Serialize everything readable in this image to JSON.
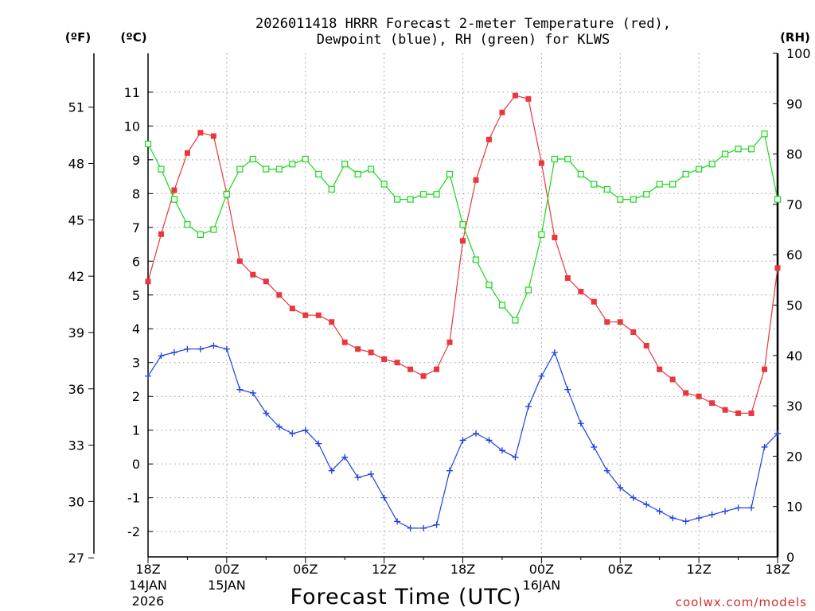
{
  "chart_data": {
    "type": "line",
    "title_line1": "2026011418 HRRR Forecast 2-meter Temperature (red),",
    "title_line2": "Dewpoint (blue), RH (green) for KLWS",
    "xlabel": "Forecast Time (UTC)",
    "watermark": "coolwx.com/models",
    "left_f_label": "(ºF)",
    "left_c_label": "(ºC)",
    "right_label": "(RH)",
    "x_hours_range": [
      0,
      48
    ],
    "c_range": [
      -2.75,
      12.15
    ],
    "rh_range": [
      0,
      100
    ],
    "x_ticks": [
      {
        "hour": 0,
        "label": "18Z",
        "date": "14JAN",
        "year": "2026"
      },
      {
        "hour": 6,
        "label": "00Z",
        "date": "15JAN",
        "year": ""
      },
      {
        "hour": 12,
        "label": "06Z",
        "date": "",
        "year": ""
      },
      {
        "hour": 18,
        "label": "12Z",
        "date": "",
        "year": ""
      },
      {
        "hour": 24,
        "label": "18Z",
        "date": "",
        "year": ""
      },
      {
        "hour": 30,
        "label": "00Z",
        "date": "16JAN",
        "year": ""
      },
      {
        "hour": 36,
        "label": "06Z",
        "date": "",
        "year": ""
      },
      {
        "hour": 42,
        "label": "12Z",
        "date": "",
        "year": ""
      },
      {
        "hour": 48,
        "label": "18Z",
        "date": "",
        "year": ""
      }
    ],
    "c_ticks": [
      "-2",
      "-1",
      "0",
      "1",
      "2",
      "3",
      "4",
      "5",
      "6",
      "7",
      "8",
      "9",
      "10",
      "11"
    ],
    "f_ticks": [
      "27",
      "30",
      "33",
      "36",
      "39",
      "42",
      "45",
      "48",
      "51"
    ],
    "rh_ticks": [
      "0",
      "10",
      "20",
      "30",
      "40",
      "50",
      "60",
      "70",
      "80",
      "90",
      "100"
    ],
    "series": [
      {
        "name": "Temperature (°C)",
        "color": "#e8383d",
        "marker": "filled-square",
        "axis": "c",
        "values": [
          5.4,
          6.8,
          8.1,
          9.2,
          9.8,
          9.7,
          8.0,
          6.0,
          5.6,
          5.4,
          5.0,
          4.6,
          4.4,
          4.4,
          4.2,
          3.6,
          3.4,
          3.3,
          3.1,
          3.0,
          2.8,
          2.6,
          2.8,
          3.6,
          6.6,
          8.4,
          9.6,
          10.4,
          10.9,
          10.8,
          8.9,
          6.7,
          5.5,
          5.1,
          4.8,
          4.2,
          4.2,
          3.9,
          3.5,
          2.8,
          2.5,
          2.1,
          2.0,
          1.8,
          1.6,
          1.5,
          1.5,
          2.8,
          5.8
        ]
      },
      {
        "name": "Dewpoint (°C)",
        "color": "#2040e0",
        "marker": "plus",
        "axis": "c",
        "values": [
          2.6,
          3.2,
          3.3,
          3.4,
          3.4,
          3.5,
          3.4,
          2.2,
          2.1,
          1.5,
          1.1,
          0.9,
          1.0,
          0.6,
          -0.2,
          0.2,
          -0.4,
          -0.3,
          -1.0,
          -1.7,
          -1.9,
          -1.9,
          -1.8,
          -0.2,
          0.7,
          0.9,
          0.7,
          0.4,
          0.2,
          1.7,
          2.6,
          3.3,
          2.2,
          1.2,
          0.5,
          -0.2,
          -0.7,
          -1.0,
          -1.2,
          -1.4,
          -1.6,
          -1.7,
          -1.6,
          -1.5,
          -1.4,
          -1.3,
          -1.3,
          0.5,
          0.9
        ]
      },
      {
        "name": "Relative Humidity (%)",
        "color": "#18d818",
        "marker": "open-square",
        "axis": "rh",
        "values": [
          82,
          77,
          71,
          66,
          64,
          65,
          72,
          77,
          79,
          77,
          77,
          78,
          79,
          76,
          73,
          78,
          76,
          77,
          74,
          71,
          71,
          72,
          72,
          76,
          66,
          59,
          54,
          50,
          47,
          53,
          64,
          79,
          79,
          76,
          74,
          73,
          71,
          71,
          72,
          74,
          74,
          76,
          77,
          78,
          80,
          81,
          81,
          84,
          71
        ]
      }
    ]
  }
}
